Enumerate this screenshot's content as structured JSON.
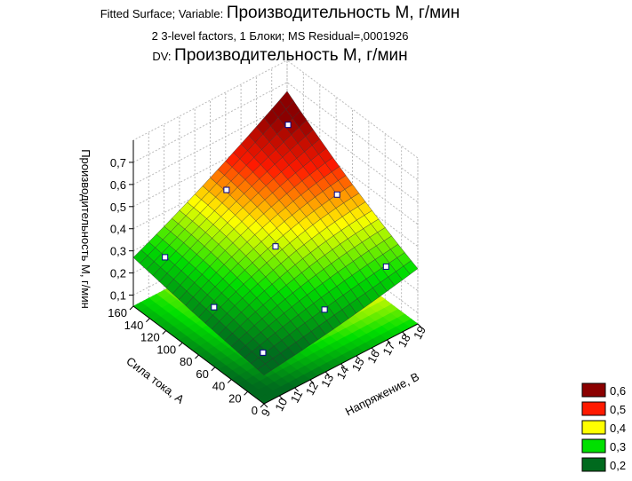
{
  "chart_data": {
    "type": "surface",
    "title_prefix": "Fitted Surface; Variable: ",
    "title": "Производительность М, г/мин",
    "subtitle": "2 3-level factors, 1 Блоки; MS Residual=,0001926",
    "dv_prefix": "DV: ",
    "dv": "Производительность М, г/мин",
    "x_label": "Напряжение, В",
    "y_label": "Сила тока, А",
    "z_label": "Производительность М, г/мин",
    "xlim": [
      9,
      19
    ],
    "xticks": [
      9,
      10,
      11,
      12,
      13,
      14,
      15,
      16,
      17,
      18,
      19
    ],
    "ylim": [
      0,
      160
    ],
    "yticks": [
      0,
      20,
      40,
      60,
      80,
      100,
      120,
      140,
      160
    ],
    "zlim": [
      0.05,
      0.8
    ],
    "zticks": [
      {
        "value": 0.1,
        "label": "0,1"
      },
      {
        "value": 0.2,
        "label": "0,2"
      },
      {
        "value": 0.3,
        "label": "0,3"
      },
      {
        "value": 0.4,
        "label": "0,4"
      },
      {
        "value": 0.5,
        "label": "0,5"
      },
      {
        "value": 0.6,
        "label": "0,6"
      },
      {
        "value": 0.7,
        "label": "0,7"
      }
    ],
    "surface": {
      "x": [
        9,
        14,
        19
      ],
      "y": [
        0,
        80,
        160
      ],
      "z": [
        [
          0.18,
          0.22,
          0.27
        ],
        [
          0.23,
          0.38,
          0.45
        ],
        [
          0.3,
          0.46,
          0.66
        ]
      ]
    },
    "points": {
      "x": [
        10,
        10,
        10,
        14,
        14,
        14,
        18,
        18,
        18
      ],
      "y": [
        20,
        80,
        140,
        20,
        80,
        140,
        20,
        80,
        140
      ],
      "z": [
        0.19,
        0.23,
        0.29,
        0.24,
        0.36,
        0.45,
        0.29,
        0.45,
        0.6
      ]
    },
    "legend": [
      {
        "value": 0.6,
        "label": "0,6",
        "color": "#8b0000"
      },
      {
        "value": 0.5,
        "label": "0,5",
        "color": "#ff1a00"
      },
      {
        "value": 0.4,
        "label": "0,4",
        "color": "#ffff00"
      },
      {
        "value": 0.3,
        "label": "0,3",
        "color": "#00e000"
      },
      {
        "value": 0.2,
        "label": "0,2",
        "color": "#006a1e"
      }
    ]
  }
}
